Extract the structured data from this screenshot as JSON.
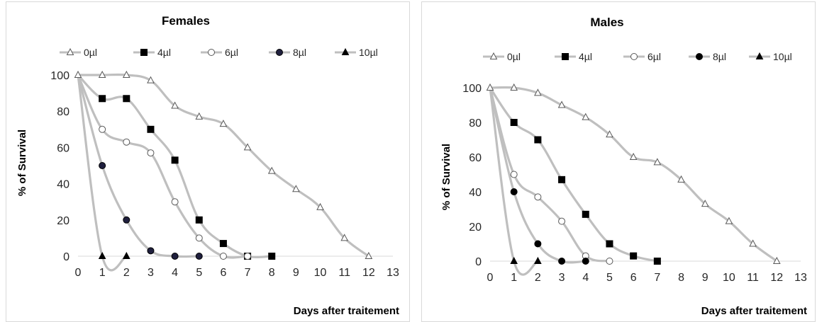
{
  "chart_data": [
    {
      "type": "line",
      "title": "Females",
      "xlabel": "Days after traitement",
      "ylabel": "% of Survival",
      "xlim": [
        0,
        13
      ],
      "ylim": [
        0,
        100
      ],
      "x_ticks": [
        "0",
        "1",
        "2",
        "3",
        "4",
        "5",
        "6",
        "7",
        "8",
        "9",
        "10",
        "11",
        "12",
        "13"
      ],
      "y_ticks": [
        "0",
        "20",
        "40",
        "60",
        "80",
        "100"
      ],
      "legend_position": "top",
      "grid": false,
      "series": [
        {
          "name": "0µl",
          "marker": "triangle-open",
          "x": [
            0,
            1,
            2,
            3,
            4,
            5,
            6,
            7,
            8,
            9,
            10,
            11,
            12
          ],
          "y": [
            100,
            100,
            100,
            97,
            83,
            77,
            73,
            60,
            47,
            37,
            27,
            10,
            0
          ]
        },
        {
          "name": "4µl",
          "marker": "square-filled",
          "x": [
            0,
            1,
            2,
            3,
            4,
            5,
            6,
            7,
            8
          ],
          "y": [
            100,
            87,
            87,
            70,
            53,
            20,
            7,
            0,
            0
          ]
        },
        {
          "name": "6µl",
          "marker": "circle-open",
          "x": [
            0,
            1,
            2,
            3,
            4,
            5,
            6,
            7
          ],
          "y": [
            100,
            70,
            63,
            57,
            30,
            10,
            0,
            0
          ]
        },
        {
          "name": "8µl",
          "marker": "circle-dark",
          "x": [
            0,
            1,
            2,
            3,
            4,
            5
          ],
          "y": [
            100,
            50,
            20,
            3,
            0,
            0
          ]
        },
        {
          "name": "10µl",
          "marker": "triangle-filled",
          "x": [
            0,
            1,
            2
          ],
          "y": [
            100,
            0,
            0
          ]
        }
      ]
    },
    {
      "type": "line",
      "title": "Males",
      "xlabel": "Days after traitement",
      "ylabel": "% of Survival",
      "xlim": [
        0,
        13
      ],
      "ylim": [
        0,
        100
      ],
      "x_ticks": [
        "0",
        "1",
        "2",
        "3",
        "4",
        "5",
        "6",
        "7",
        "8",
        "9",
        "10",
        "11",
        "12",
        "13"
      ],
      "y_ticks": [
        "0",
        "20",
        "40",
        "60",
        "80",
        "100"
      ],
      "legend_position": "top",
      "grid": false,
      "series": [
        {
          "name": "0µl",
          "marker": "triangle-open",
          "x": [
            0,
            1,
            2,
            3,
            4,
            5,
            6,
            7,
            8,
            9,
            10,
            11,
            12
          ],
          "y": [
            100,
            100,
            97,
            90,
            83,
            73,
            60,
            57,
            47,
            33,
            23,
            10,
            0
          ]
        },
        {
          "name": "4µl",
          "marker": "square-filled",
          "x": [
            0,
            1,
            2,
            3,
            4,
            5,
            6,
            7
          ],
          "y": [
            100,
            80,
            70,
            47,
            27,
            10,
            3,
            0
          ]
        },
        {
          "name": "6µl",
          "marker": "circle-open",
          "x": [
            0,
            1,
            2,
            3,
            4,
            5
          ],
          "y": [
            100,
            50,
            37,
            23,
            3,
            0
          ]
        },
        {
          "name": "8µl",
          "marker": "circle-filled",
          "x": [
            0,
            1,
            2,
            3,
            4
          ],
          "y": [
            100,
            40,
            10,
            0,
            0
          ]
        },
        {
          "name": "10µl",
          "marker": "triangle-filled",
          "x": [
            0,
            1,
            2
          ],
          "y": [
            100,
            0,
            0
          ]
        }
      ]
    }
  ]
}
